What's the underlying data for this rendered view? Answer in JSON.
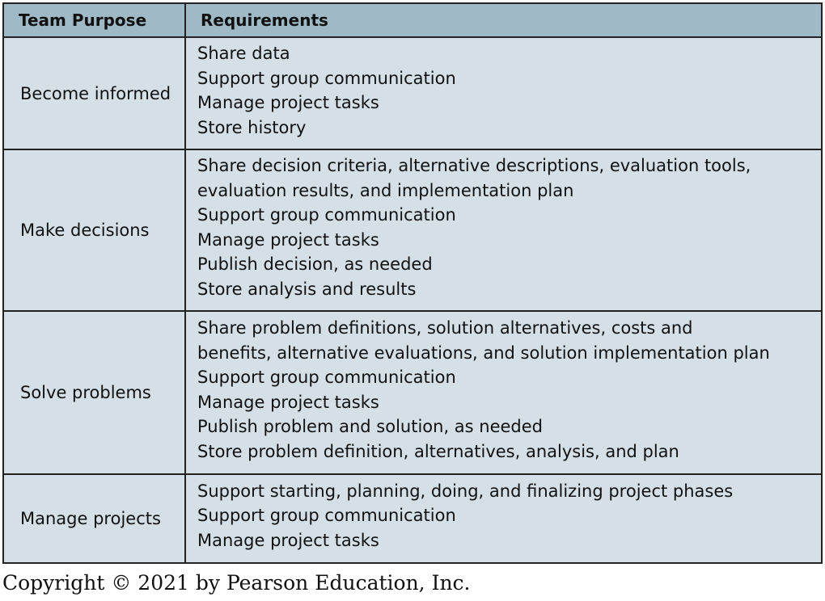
{
  "table": {
    "headers": {
      "purpose": "Team Purpose",
      "requirements": "Requirements"
    },
    "rows": [
      {
        "purpose": "Become informed",
        "requirements": [
          "Share data",
          "Support group communication",
          "Manage project tasks",
          "Store history"
        ]
      },
      {
        "purpose": "Make decisions",
        "requirements": [
          "Share decision criteria, alternative descriptions, evaluation tools,",
          "evaluation results, and implementation plan",
          "Support group communication",
          "Manage project tasks",
          "Publish decision, as needed",
          "Store analysis and results"
        ]
      },
      {
        "purpose": "Solve problems",
        "requirements": [
          "Share problem definitions, solution alternatives, costs and",
          "benefits, alternative evaluations, and solution implementation plan",
          "Support group communication",
          "Manage project tasks",
          "Publish problem and solution, as needed",
          "Store problem definition, alternatives, analysis, and plan"
        ]
      },
      {
        "purpose": "Manage projects",
        "requirements": [
          "Support starting, planning, doing, and finalizing project phases",
          "Support group communication",
          "Manage project tasks"
        ]
      }
    ]
  },
  "footer": {
    "copyright": "Copyright © 2021 by Pearson Education, Inc."
  }
}
